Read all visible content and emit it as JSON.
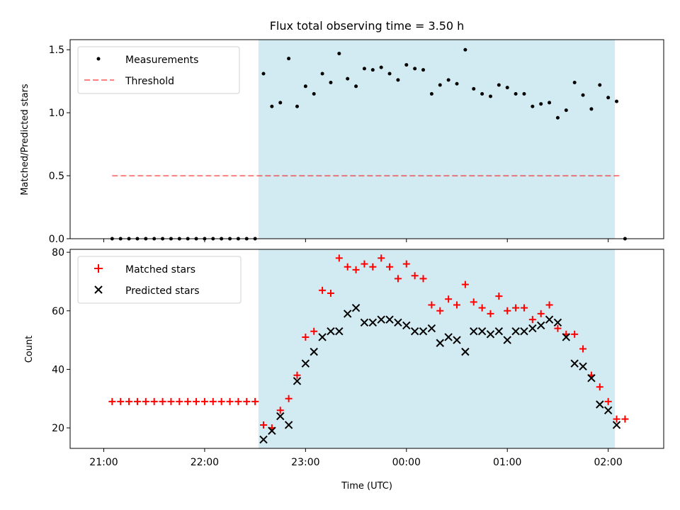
{
  "title": "Flux total observing time = 3.50 h",
  "xlabel": "Time (UTC)",
  "x_ticks": [
    "21:00",
    "22:00",
    "23:00",
    "00:00",
    "01:00",
    "02:00"
  ],
  "colors": {
    "shade": "#add8e6",
    "measurements": "#000000",
    "threshold": "#ff0000",
    "matched": "#ff0000",
    "predicted": "#000000"
  },
  "chart_data": [
    {
      "type": "scatter",
      "panel": "top",
      "ylabel": "Matched/Predicted stars",
      "ylim": [
        0,
        1.58
      ],
      "y_ticks": [
        "0.0",
        "0.5",
        "1.0",
        "1.5"
      ],
      "x_range": [
        "21:00",
        "02:00"
      ],
      "shaded_interval": [
        "22:32",
        "02:04"
      ],
      "legend": {
        "placement": "upper-left",
        "entries": [
          "Measurements",
          "Threshold"
        ]
      },
      "threshold": {
        "name": "Threshold",
        "value": 0.5,
        "x_start": "21:05",
        "x_end": "02:07"
      },
      "series": [
        {
          "name": "Measurements",
          "x": [
            "21:05",
            "21:10",
            "21:15",
            "21:20",
            "21:25",
            "21:30",
            "21:35",
            "21:40",
            "21:45",
            "21:50",
            "21:55",
            "22:00",
            "22:05",
            "22:10",
            "22:15",
            "22:20",
            "22:25",
            "22:30",
            "22:35",
            "22:40",
            "22:45",
            "22:50",
            "22:55",
            "23:00",
            "23:05",
            "23:10",
            "23:15",
            "23:20",
            "23:25",
            "23:30",
            "23:35",
            "23:40",
            "23:45",
            "23:50",
            "23:55",
            "00:00",
            "00:05",
            "00:10",
            "00:15",
            "00:20",
            "00:25",
            "00:30",
            "00:35",
            "00:40",
            "00:45",
            "00:50",
            "00:55",
            "01:00",
            "01:05",
            "01:10",
            "01:15",
            "01:20",
            "01:25",
            "01:30",
            "01:35",
            "01:40",
            "01:45",
            "01:50",
            "01:55",
            "02:00",
            "02:05",
            "02:10"
          ],
          "values": [
            0,
            0,
            0,
            0,
            0,
            0,
            0,
            0,
            0,
            0,
            0,
            0,
            0,
            0,
            0,
            0,
            0,
            0,
            1.31,
            1.05,
            1.08,
            1.43,
            1.05,
            1.21,
            1.15,
            1.31,
            1.24,
            1.47,
            1.27,
            1.21,
            1.35,
            1.34,
            1.36,
            1.31,
            1.26,
            1.38,
            1.35,
            1.34,
            1.15,
            1.22,
            1.26,
            1.23,
            1.5,
            1.19,
            1.15,
            1.13,
            1.22,
            1.2,
            1.15,
            1.15,
            1.05,
            1.07,
            1.08,
            0.96,
            1.02,
            1.24,
            1.14,
            1.03,
            1.22,
            1.12,
            1.09,
            0
          ]
        }
      ]
    },
    {
      "type": "scatter",
      "panel": "bottom",
      "ylabel": "Count",
      "ylim": [
        13,
        81
      ],
      "y_ticks": [
        "20",
        "40",
        "60",
        "80"
      ],
      "x_range": [
        "21:00",
        "02:00"
      ],
      "shaded_interval": [
        "22:32",
        "02:04"
      ],
      "legend": {
        "placement": "upper-left",
        "entries": [
          "Matched stars",
          "Predicted stars"
        ]
      },
      "series": [
        {
          "name": "Matched stars",
          "marker": "plus",
          "x": [
            "21:05",
            "21:10",
            "21:15",
            "21:20",
            "21:25",
            "21:30",
            "21:35",
            "21:40",
            "21:45",
            "21:50",
            "21:55",
            "22:00",
            "22:05",
            "22:10",
            "22:15",
            "22:20",
            "22:25",
            "22:30",
            "22:35",
            "22:40",
            "22:45",
            "22:50",
            "22:55",
            "23:00",
            "23:05",
            "23:10",
            "23:15",
            "23:20",
            "23:25",
            "23:30",
            "23:35",
            "23:40",
            "23:45",
            "23:50",
            "23:55",
            "00:00",
            "00:05",
            "00:10",
            "00:15",
            "00:20",
            "00:25",
            "00:30",
            "00:35",
            "00:40",
            "00:45",
            "00:50",
            "00:55",
            "01:00",
            "01:05",
            "01:10",
            "01:15",
            "01:20",
            "01:25",
            "01:30",
            "01:35",
            "01:40",
            "01:45",
            "01:50",
            "01:55",
            "02:00",
            "02:05",
            "02:10"
          ],
          "values": [
            29,
            29,
            29,
            29,
            29,
            29,
            29,
            29,
            29,
            29,
            29,
            29,
            29,
            29,
            29,
            29,
            29,
            29,
            21,
            20,
            26,
            30,
            38,
            51,
            53,
            67,
            66,
            78,
            75,
            74,
            76,
            75,
            78,
            75,
            71,
            76,
            72,
            71,
            62,
            60,
            64,
            62,
            69,
            63,
            61,
            59,
            65,
            60,
            61,
            61,
            57,
            59,
            62,
            54,
            52,
            52,
            47,
            38,
            34,
            29,
            23,
            23
          ]
        },
        {
          "name": "Predicted stars",
          "marker": "x",
          "x": [
            "22:35",
            "22:40",
            "22:45",
            "22:50",
            "22:55",
            "23:00",
            "23:05",
            "23:10",
            "23:15",
            "23:20",
            "23:25",
            "23:30",
            "23:35",
            "23:40",
            "23:45",
            "23:50",
            "23:55",
            "00:00",
            "00:05",
            "00:10",
            "00:15",
            "00:20",
            "00:25",
            "00:30",
            "00:35",
            "00:40",
            "00:45",
            "00:50",
            "00:55",
            "01:00",
            "01:05",
            "01:10",
            "01:15",
            "01:20",
            "01:25",
            "01:30",
            "01:35",
            "01:40",
            "01:45",
            "01:50",
            "01:55",
            "02:00",
            "02:05"
          ],
          "values": [
            16,
            19,
            24,
            21,
            36,
            42,
            46,
            51,
            53,
            53,
            59,
            61,
            56,
            56,
            57,
            57,
            56,
            55,
            53,
            53,
            54,
            49,
            51,
            50,
            46,
            53,
            53,
            52,
            53,
            50,
            53,
            53,
            54,
            55,
            57,
            56,
            51,
            42,
            41,
            37,
            28,
            26,
            21
          ]
        }
      ]
    }
  ]
}
